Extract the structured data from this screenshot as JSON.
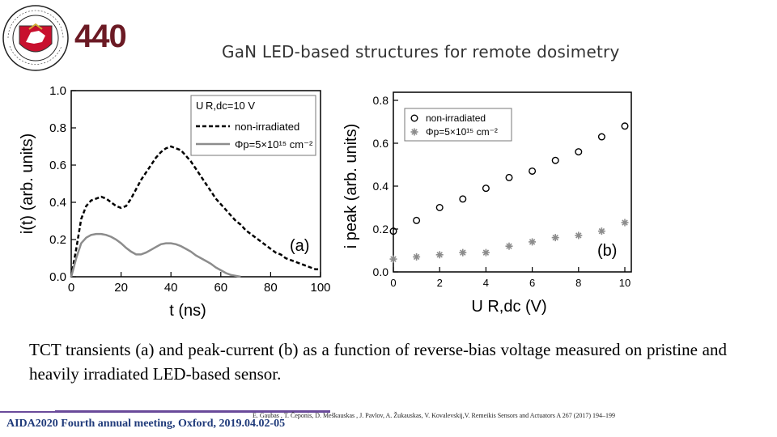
{
  "header": {
    "seal_text": "VILNIAUS UNIVERSITETAS · 1579 · UNIVERSITAS VILNENSIS",
    "logo_text": "440",
    "title": "GaN LED-based  structures for remote dosimetry"
  },
  "colors": {
    "footer_line": "#6a4a9a",
    "footer_text": "#1f3a7a",
    "series_grey": "#8c8c8c",
    "seal_red": "#c8102e"
  },
  "chart_data": [
    {
      "type": "line",
      "panel_label": "(a)",
      "xlabel": "t (ns)",
      "ylabel": "i(t) (arb. units)",
      "xlim": [
        0,
        100
      ],
      "ylim": [
        0,
        1.0
      ],
      "xticks": [
        "0",
        "20",
        "40",
        "60",
        "80",
        "100"
      ],
      "yticks": [
        "0.0",
        "0.2",
        "0.4",
        "0.6",
        "0.8",
        "1.0"
      ],
      "legend_placement": "top-right",
      "legend_header": "U R,dc=10 V",
      "series": [
        {
          "name": "non-irradiated",
          "style": "dashed",
          "x": [
            0,
            2,
            4,
            6,
            8,
            10,
            12,
            14,
            16,
            18,
            20,
            22,
            24,
            26,
            28,
            30,
            32,
            34,
            36,
            38,
            40,
            42,
            44,
            46,
            48,
            50,
            52,
            54,
            56,
            58,
            60,
            62,
            64,
            66,
            68,
            70,
            72,
            74,
            76,
            78,
            80,
            82,
            84,
            86,
            88,
            90,
            92,
            94,
            96,
            98,
            100
          ],
          "values": [
            0.0,
            0.15,
            0.31,
            0.38,
            0.41,
            0.42,
            0.43,
            0.42,
            0.4,
            0.38,
            0.37,
            0.38,
            0.42,
            0.47,
            0.52,
            0.56,
            0.6,
            0.64,
            0.67,
            0.69,
            0.7,
            0.69,
            0.68,
            0.65,
            0.62,
            0.58,
            0.54,
            0.5,
            0.46,
            0.42,
            0.39,
            0.36,
            0.33,
            0.3,
            0.28,
            0.25,
            0.23,
            0.21,
            0.19,
            0.17,
            0.15,
            0.13,
            0.12,
            0.1,
            0.09,
            0.08,
            0.07,
            0.06,
            0.05,
            0.04,
            0.04
          ]
        },
        {
          "name": "Φp=5×10¹⁵ cm⁻²",
          "style": "solid",
          "x": [
            0,
            2,
            4,
            6,
            8,
            10,
            12,
            14,
            16,
            18,
            20,
            22,
            24,
            26,
            28,
            30,
            32,
            34,
            36,
            38,
            40,
            42,
            44,
            46,
            48,
            50,
            52,
            54,
            56,
            58,
            60,
            62,
            64,
            66,
            68
          ],
          "values": [
            0.0,
            0.1,
            0.18,
            0.21,
            0.225,
            0.23,
            0.23,
            0.225,
            0.215,
            0.2,
            0.18,
            0.155,
            0.135,
            0.12,
            0.12,
            0.13,
            0.145,
            0.16,
            0.175,
            0.18,
            0.18,
            0.175,
            0.165,
            0.15,
            0.135,
            0.115,
            0.1,
            0.085,
            0.07,
            0.05,
            0.035,
            0.02,
            0.01,
            0.005,
            0.0
          ]
        }
      ]
    },
    {
      "type": "scatter",
      "panel_label": "(b)",
      "xlabel": "U R,dc (V)",
      "ylabel": "i peak (arb. units)",
      "xlim": [
        0,
        10
      ],
      "ylim": [
        0,
        0.8
      ],
      "xticks": [
        "0",
        "2",
        "4",
        "6",
        "8",
        "10"
      ],
      "yticks": [
        "0.0",
        "0.2",
        "0.4",
        "0.6",
        "0.8"
      ],
      "legend_placement": "top-right",
      "series": [
        {
          "name": "non-irradiated",
          "marker": "circle",
          "x": [
            0,
            1,
            2,
            3,
            4,
            5,
            6,
            7,
            8,
            9,
            10
          ],
          "values": [
            0.19,
            0.24,
            0.3,
            0.34,
            0.39,
            0.44,
            0.47,
            0.52,
            0.56,
            0.63,
            0.68
          ]
        },
        {
          "name": "Φp=5×10¹⁵ cm⁻²",
          "marker": "asterisk",
          "x": [
            0,
            1,
            2,
            3,
            4,
            5,
            6,
            7,
            8,
            9,
            10
          ],
          "values": [
            0.06,
            0.07,
            0.08,
            0.09,
            0.09,
            0.12,
            0.14,
            0.16,
            0.17,
            0.19,
            0.23
          ]
        }
      ]
    }
  ],
  "caption": "TCT transients (a) and peak-current (b) as a function of reverse-bias voltage measured on pristine and heavily irradiated LED-based sensor.",
  "reference": "E. Gaubas , T. Čeponis, D. Meškauskas , J. Pavlov, A. Žukauskas, V. Kovalevskij,V. Remeikis Sensors and Actuators A 267 (2017) 194–199",
  "footer": "AIDA2020 Fourth annual meeting, Oxford, 2019.04.02-05"
}
